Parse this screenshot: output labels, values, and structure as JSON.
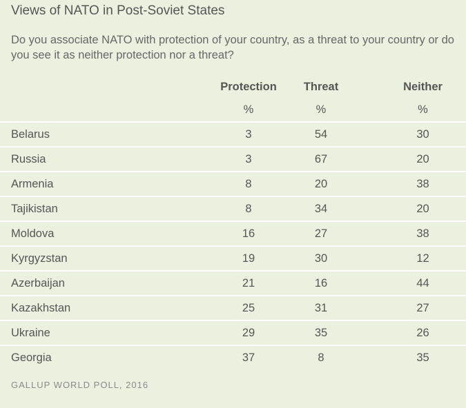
{
  "chart_data": {
    "type": "table",
    "title": "Views of NATO in Post-Soviet States",
    "subtitle": "Do you associate NATO with protection of your country, as a threat to your country or do you see it as neither protection nor a threat?",
    "columns": [
      "Protection",
      "Threat",
      "Neither"
    ],
    "units": [
      "%",
      "%",
      "%"
    ],
    "rows": [
      {
        "country": "Belarus",
        "protection": "3",
        "threat": "54",
        "neither": "30"
      },
      {
        "country": "Russia",
        "protection": "3",
        "threat": "67",
        "neither": "20"
      },
      {
        "country": "Armenia",
        "protection": "8",
        "threat": "20",
        "neither": "38"
      },
      {
        "country": "Tajikistan",
        "protection": "8",
        "threat": "34",
        "neither": "20"
      },
      {
        "country": "Moldova",
        "protection": "16",
        "threat": "27",
        "neither": "38"
      },
      {
        "country": "Kyrgyzstan",
        "protection": "19",
        "threat": "30",
        "neither": "12"
      },
      {
        "country": "Azerbaijan",
        "protection": "21",
        "threat": "16",
        "neither": "44"
      },
      {
        "country": "Kazakhstan",
        "protection": "25",
        "threat": "31",
        "neither": "27"
      },
      {
        "country": "Ukraine",
        "protection": "29",
        "threat": "35",
        "neither": "26"
      },
      {
        "country": "Georgia",
        "protection": "37",
        "threat": "8",
        "neither": "35"
      }
    ],
    "source": "GALLUP WORLD POLL, 2016"
  }
}
